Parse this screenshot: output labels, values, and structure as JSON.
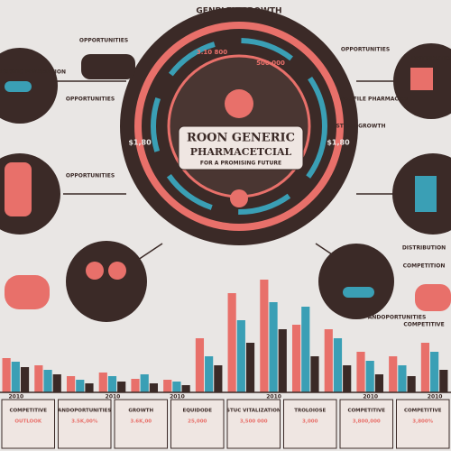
{
  "header": {
    "title": "GENPLEX GROWTH"
  },
  "center": {
    "line1": "ROON GENERIC",
    "line2": "PHARMACETCIAL",
    "line3": "FOR A PROMISING FUTURE",
    "left_value": "$1,80",
    "right_value": "$1,80",
    "top_value": "3.10 800",
    "top_value2": "500 000"
  },
  "labels": [
    {
      "text": "PROBUSTIC PHARMATION"
    },
    {
      "text": "OPPORTUNITIES"
    },
    {
      "text": "OPPORTUNITIES"
    },
    {
      "text": "OPPORTUNITIES"
    },
    {
      "text": "PROFILE PHARMACIES"
    },
    {
      "text": "DISTRIBUTION"
    },
    {
      "text": "STOCK GROWTH"
    },
    {
      "text": "OPPORTUNITIES"
    },
    {
      "text": "DISTRIBUTION"
    },
    {
      "text": "COMPETITION"
    },
    {
      "text": "ANDOPORTUNITIES"
    },
    {
      "text": "COMPETITIVE"
    }
  ],
  "chart_data": {
    "type": "bar",
    "categories": [
      "2010",
      null,
      null,
      "2010",
      null,
      "2010",
      null,
      null,
      "2010",
      null,
      null,
      "2010",
      null,
      "2010"
    ],
    "series": [
      {
        "name": "A",
        "color": "#e8706a",
        "values": [
          38,
          30,
          18,
          22,
          15,
          14,
          60,
          110,
          125,
          75,
          70,
          45,
          40,
          55
        ]
      },
      {
        "name": "B",
        "color": "#3a9fb5",
        "values": [
          34,
          25,
          14,
          18,
          20,
          12,
          40,
          80,
          100,
          95,
          60,
          35,
          30,
          45
        ]
      },
      {
        "name": "C",
        "color": "#3b2a27",
        "values": [
          28,
          20,
          10,
          12,
          10,
          8,
          30,
          55,
          70,
          40,
          30,
          20,
          18,
          25
        ]
      }
    ],
    "ylim": [
      0,
      130
    ]
  },
  "footer": {
    "boxes": [
      {
        "title": "COMPETITIVE",
        "sub": "OUTLOOK"
      },
      {
        "title": "ANDOPORTUNITIES",
        "sub": "3.5K,00%"
      },
      {
        "title": "GROWTH",
        "sub": "3.6K,00"
      },
      {
        "title": "EQUIDODE",
        "sub": "25,000"
      },
      {
        "title": "STUC VITALIZATION",
        "sub": "3,500 000"
      },
      {
        "title": "TROLOIOSE",
        "sub": "3,000"
      },
      {
        "title": "COMPETITIVE",
        "sub": "3,800,000"
      },
      {
        "title": "COMPETITIVE",
        "sub": "3,800%"
      }
    ]
  }
}
